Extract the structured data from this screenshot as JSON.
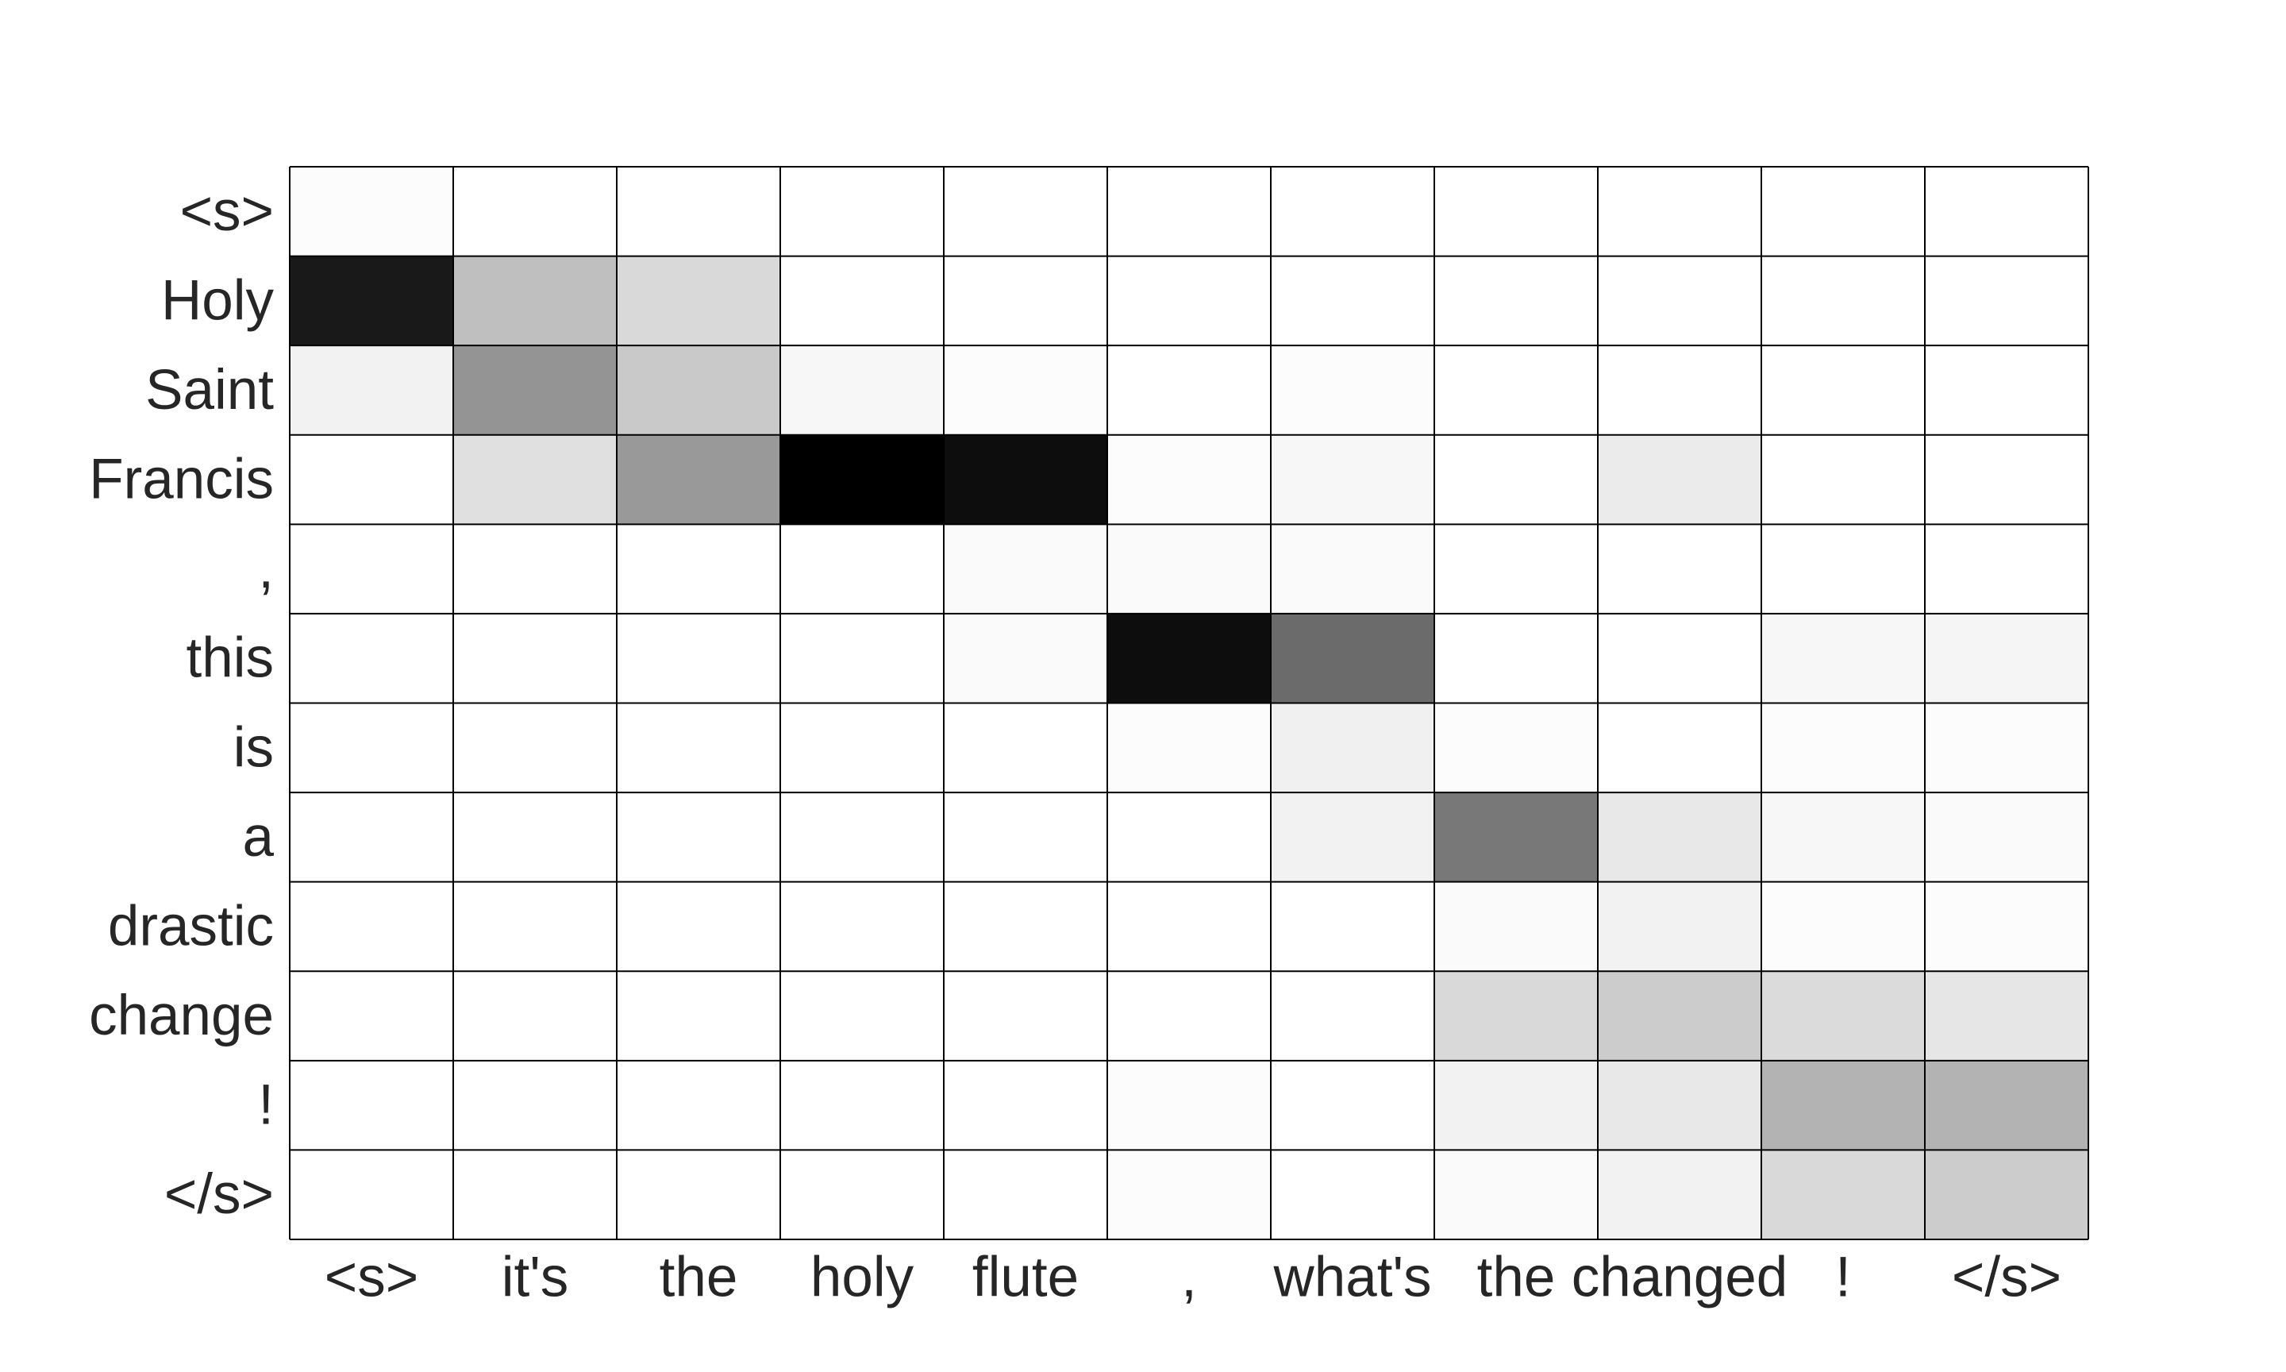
{
  "chart_data": {
    "type": "heatmap",
    "title": "",
    "xlabel": "",
    "ylabel": "",
    "colormap": "greys",
    "value_range": [
      0,
      1
    ],
    "cell_border_color": "#000000",
    "x_labels": [
      "<s>",
      "it's",
      "the",
      "holy",
      "flute",
      ",",
      "what's",
      "the",
      "changed",
      "!",
      "</s>"
    ],
    "y_labels": [
      "<s>",
      "Holy",
      "Saint",
      "Francis",
      ",",
      "this",
      "is",
      "a",
      "drastic",
      "change",
      "!",
      "</s>"
    ],
    "values": [
      [
        0.01,
        0.0,
        0.0,
        0.0,
        0.0,
        0.0,
        0.0,
        0.0,
        0.0,
        0.0,
        0.0
      ],
      [
        0.9,
        0.25,
        0.15,
        0.0,
        0.0,
        0.0,
        0.0,
        0.0,
        0.0,
        0.0,
        0.0
      ],
      [
        0.05,
        0.42,
        0.21,
        0.03,
        0.01,
        0.0,
        0.01,
        0.0,
        0.0,
        0.0,
        0.0
      ],
      [
        0.0,
        0.12,
        0.4,
        1.0,
        0.95,
        0.01,
        0.03,
        0.0,
        0.08,
        0.0,
        0.0
      ],
      [
        0.0,
        0.0,
        0.0,
        0.0,
        0.02,
        0.02,
        0.02,
        0.0,
        0.0,
        0.0,
        0.0
      ],
      [
        0.0,
        0.0,
        0.0,
        0.0,
        0.02,
        0.95,
        0.58,
        0.0,
        0.0,
        0.03,
        0.04
      ],
      [
        0.0,
        0.0,
        0.0,
        0.0,
        0.0,
        0.01,
        0.06,
        0.01,
        0.0,
        0.01,
        0.01
      ],
      [
        0.0,
        0.0,
        0.0,
        0.0,
        0.0,
        0.0,
        0.05,
        0.53,
        0.09,
        0.03,
        0.02
      ],
      [
        0.0,
        0.0,
        0.0,
        0.0,
        0.0,
        0.0,
        0.0,
        0.02,
        0.05,
        0.01,
        0.01
      ],
      [
        0.0,
        0.0,
        0.0,
        0.0,
        0.0,
        0.0,
        0.0,
        0.15,
        0.2,
        0.14,
        0.1
      ],
      [
        0.0,
        0.0,
        0.0,
        0.0,
        0.0,
        0.01,
        0.0,
        0.05,
        0.09,
        0.3,
        0.3
      ],
      [
        0.0,
        0.0,
        0.0,
        0.0,
        0.0,
        0.01,
        0.0,
        0.02,
        0.05,
        0.15,
        0.2
      ]
    ]
  }
}
